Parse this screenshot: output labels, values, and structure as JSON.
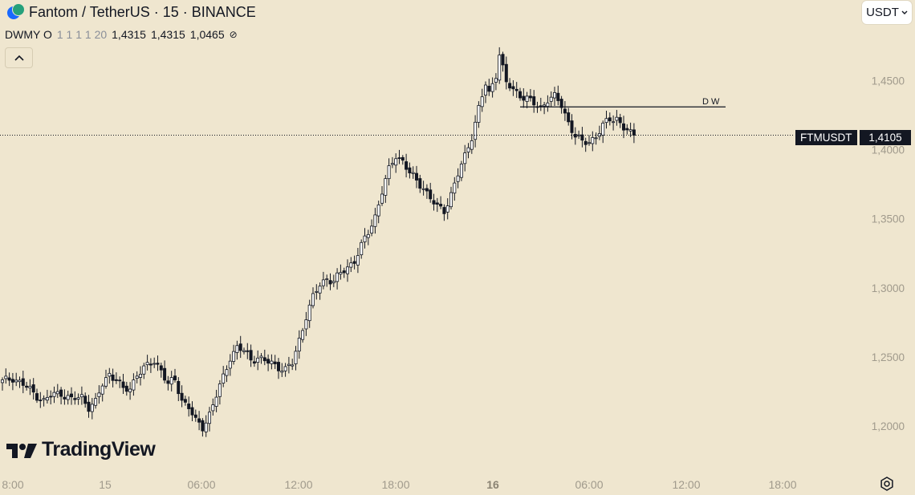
{
  "header": {
    "title": "Fantom / TetherUS · 15 · BINANCE",
    "ohlc_label": "DWMY O",
    "ohlc_dim": "1 1 1 1 20",
    "val1": "1,4315",
    "val2": "1,4315",
    "val3": "1,0465",
    "eye_symbol": "⊘"
  },
  "currency": {
    "label": "USDT"
  },
  "logo": {
    "text": "TradingView"
  },
  "price_label": {
    "symbol": "FTMUSDT",
    "value": "1,4105"
  },
  "colors": {
    "background": "#efe6cf",
    "candle_up": "#ffffff",
    "candle_down": "#131722",
    "outline": "#131722",
    "axis_text": "#a09a8c"
  },
  "chart_data": {
    "type": "candlestick",
    "symbol": "FTMUSDT",
    "interval": "15",
    "current_price": 1.4105,
    "ylim": [
      1.185,
      1.505
    ],
    "y_ticks": [
      "1,4500",
      "1,4000",
      "1,3500",
      "1,3000",
      "1,2500",
      "1,2000"
    ],
    "y_tick_values": [
      1.45,
      1.4,
      1.35,
      1.3,
      1.25,
      1.2
    ],
    "x_ticks": [
      "8:00",
      "15",
      "06:00",
      "12:00",
      "18:00",
      "16",
      "06:00",
      "12:00",
      "18:00"
    ],
    "x_tick_bold": [
      false,
      false,
      false,
      false,
      false,
      true,
      false,
      false,
      false
    ],
    "horizontal_level": {
      "value": 1.431,
      "labels": "D   W"
    },
    "anchors": [
      [
        0,
        1.232
      ],
      [
        3,
        1.235
      ],
      [
        6,
        1.23
      ],
      [
        9,
        1.224
      ],
      [
        12,
        1.218
      ],
      [
        14,
        1.222
      ],
      [
        17,
        1.224
      ],
      [
        20,
        1.219
      ],
      [
        23,
        1.221
      ],
      [
        25,
        1.214
      ],
      [
        27,
        1.217
      ],
      [
        29,
        1.23
      ],
      [
        31,
        1.238
      ],
      [
        33,
        1.234
      ],
      [
        35,
        1.226
      ],
      [
        37,
        1.227
      ],
      [
        39,
        1.238
      ],
      [
        42,
        1.243
      ],
      [
        44,
        1.247
      ],
      [
        46,
        1.241
      ],
      [
        48,
        1.23
      ],
      [
        50,
        1.233
      ],
      [
        52,
        1.219
      ],
      [
        54,
        1.214
      ],
      [
        56,
        1.203
      ],
      [
        58,
        1.199
      ],
      [
        60,
        1.209
      ],
      [
        62,
        1.222
      ],
      [
        64,
        1.235
      ],
      [
        66,
        1.25
      ],
      [
        68,
        1.257
      ],
      [
        70,
        1.254
      ],
      [
        72,
        1.248
      ],
      [
        74,
        1.25
      ],
      [
        76,
        1.247
      ],
      [
        78,
        1.245
      ],
      [
        80,
        1.243
      ],
      [
        82,
        1.241
      ],
      [
        84,
        1.245
      ],
      [
        86,
        1.262
      ],
      [
        88,
        1.28
      ],
      [
        90,
        1.293
      ],
      [
        92,
        1.302
      ],
      [
        94,
        1.307
      ],
      [
        96,
        1.305
      ],
      [
        98,
        1.31
      ],
      [
        100,
        1.315
      ],
      [
        102,
        1.32
      ],
      [
        104,
        1.33
      ],
      [
        106,
        1.34
      ],
      [
        108,
        1.352
      ],
      [
        110,
        1.37
      ],
      [
        112,
        1.385
      ],
      [
        114,
        1.396
      ],
      [
        116,
        1.392
      ],
      [
        118,
        1.383
      ],
      [
        120,
        1.377
      ],
      [
        122,
        1.373
      ],
      [
        124,
        1.365
      ],
      [
        126,
        1.358
      ],
      [
        128,
        1.356
      ],
      [
        130,
        1.368
      ],
      [
        132,
        1.382
      ],
      [
        134,
        1.395
      ],
      [
        136,
        1.41
      ],
      [
        138,
        1.43
      ],
      [
        140,
        1.447
      ],
      [
        141,
        1.44
      ],
      [
        143,
        1.455
      ],
      [
        144,
        1.47
      ],
      [
        146,
        1.448
      ],
      [
        148,
        1.443
      ],
      [
        150,
        1.44
      ],
      [
        152,
        1.437
      ],
      [
        154,
        1.433
      ],
      [
        156,
        1.43
      ],
      [
        158,
        1.437
      ],
      [
        160,
        1.438
      ],
      [
        162,
        1.432
      ],
      [
        164,
        1.42
      ],
      [
        166,
        1.41
      ],
      [
        168,
        1.405
      ],
      [
        170,
        1.406
      ],
      [
        172,
        1.41
      ],
      [
        174,
        1.417
      ],
      [
        176,
        1.422
      ],
      [
        178,
        1.423
      ],
      [
        180,
        1.416
      ],
      [
        182,
        1.411
      ],
      [
        183,
        1.4105
      ]
    ]
  }
}
